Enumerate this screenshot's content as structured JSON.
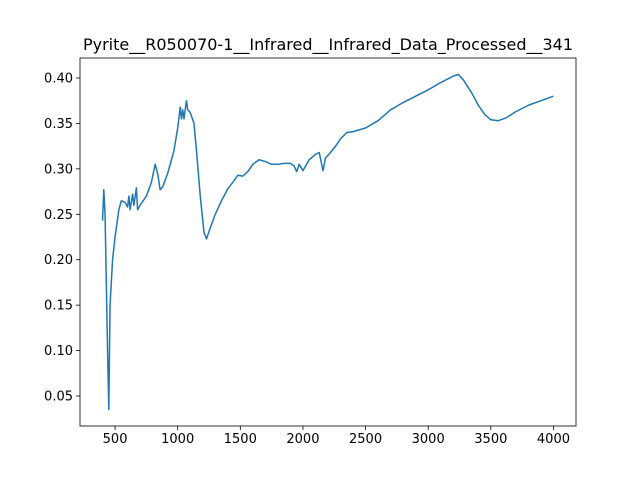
{
  "chart_data": {
    "type": "line",
    "title": "Pyrite__R050070-1__Infrared__Infrared_Data_Processed__341",
    "x": [
      400,
      410,
      420,
      440,
      450,
      460,
      480,
      500,
      530,
      550,
      580,
      600,
      610,
      620,
      640,
      650,
      670,
      680,
      700,
      750,
      790,
      820,
      840,
      860,
      880,
      920,
      970,
      1000,
      1020,
      1030,
      1040,
      1050,
      1070,
      1080,
      1100,
      1130,
      1150,
      1180,
      1210,
      1230,
      1260,
      1300,
      1350,
      1400,
      1450,
      1480,
      1520,
      1560,
      1600,
      1650,
      1700,
      1750,
      1800,
      1850,
      1900,
      1930,
      1950,
      1970,
      2000,
      2050,
      2100,
      2130,
      2160,
      2180,
      2220,
      2260,
      2300,
      2350,
      2400,
      2500,
      2600,
      2700,
      2800,
      2900,
      3000,
      3100,
      3200,
      3240,
      3280,
      3350,
      3400,
      3450,
      3500,
      3560,
      3620,
      3700,
      3800,
      3900,
      4000
    ],
    "series": [
      {
        "color": "#1f77b4",
        "values": [
          0.243,
          0.277,
          0.25,
          0.1,
          0.035,
          0.15,
          0.2,
          0.225,
          0.255,
          0.265,
          0.263,
          0.258,
          0.27,
          0.255,
          0.272,
          0.26,
          0.279,
          0.255,
          0.26,
          0.27,
          0.285,
          0.305,
          0.295,
          0.277,
          0.28,
          0.295,
          0.32,
          0.345,
          0.368,
          0.355,
          0.365,
          0.355,
          0.375,
          0.365,
          0.362,
          0.35,
          0.32,
          0.27,
          0.23,
          0.223,
          0.235,
          0.25,
          0.265,
          0.278,
          0.287,
          0.293,
          0.292,
          0.297,
          0.305,
          0.31,
          0.308,
          0.305,
          0.305,
          0.306,
          0.306,
          0.303,
          0.297,
          0.305,
          0.298,
          0.31,
          0.316,
          0.318,
          0.298,
          0.312,
          0.318,
          0.325,
          0.333,
          0.34,
          0.341,
          0.345,
          0.353,
          0.365,
          0.373,
          0.38,
          0.387,
          0.395,
          0.402,
          0.404,
          0.398,
          0.383,
          0.37,
          0.36,
          0.354,
          0.353,
          0.356,
          0.363,
          0.37,
          0.375,
          0.38
        ]
      }
    ],
    "xlim": [
      220,
      4180
    ],
    "ylim": [
      0.017,
      0.422
    ],
    "xticks": [
      500,
      1000,
      1500,
      2000,
      2500,
      3000,
      3500,
      4000
    ],
    "yticks": [
      {
        "value": 0.05,
        "label": "0.05"
      },
      {
        "value": 0.1,
        "label": "0.10"
      },
      {
        "value": 0.15,
        "label": "0.15"
      },
      {
        "value": 0.2,
        "label": "0.20"
      },
      {
        "value": 0.25,
        "label": "0.25"
      },
      {
        "value": 0.3,
        "label": "0.30"
      },
      {
        "value": 0.35,
        "label": "0.35"
      },
      {
        "value": 0.4,
        "label": "0.40"
      }
    ]
  }
}
